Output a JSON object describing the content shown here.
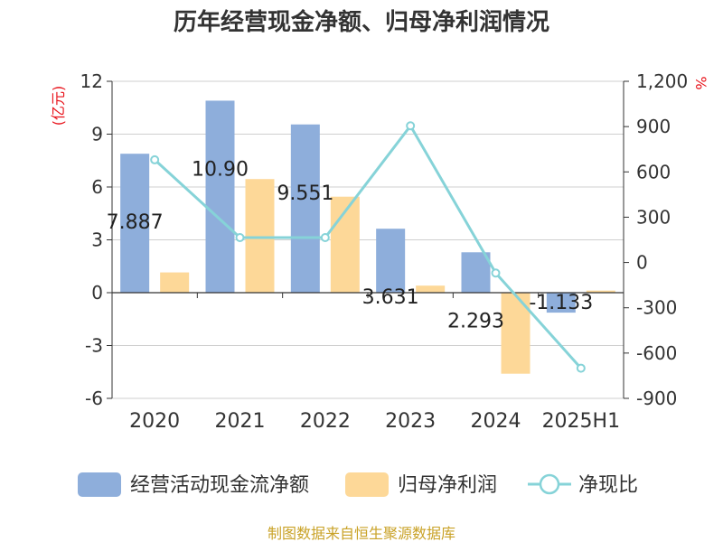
{
  "chart_data": {
    "type": "bar",
    "title": "历年经营现金净额、归母净利润情况",
    "categories": [
      "2020",
      "2021",
      "2022",
      "2023",
      "2024",
      "2025H1"
    ],
    "series": [
      {
        "name": "经营活动现金流净额",
        "type": "bar",
        "axis": "left",
        "color": "#8eaedb",
        "values": [
          7.887,
          10.9,
          9.551,
          3.631,
          2.293,
          -1.133
        ]
      },
      {
        "name": "归母净利润",
        "type": "bar",
        "axis": "left",
        "color": "#fdd898",
        "values": [
          1.15,
          6.45,
          5.45,
          0.4,
          -4.6,
          0.12
        ]
      },
      {
        "name": "净现比",
        "type": "line",
        "axis": "right",
        "color": "#86d3d8",
        "values": [
          680,
          165,
          165,
          905,
          -70,
          -700
        ]
      }
    ],
    "data_labels": [
      "7.887",
      "10.90",
      "9.551",
      "3.631",
      "2.293",
      "-1.133"
    ],
    "left_axis": {
      "unit": "(亿元)",
      "ylim": [
        -6,
        12
      ],
      "ticks": [
        "12",
        "9",
        "6",
        "3",
        "0",
        "-3",
        "-6"
      ]
    },
    "right_axis": {
      "unit": "%",
      "ylim": [
        -900,
        1200
      ],
      "ticks": [
        "1,200",
        "900",
        "600",
        "300",
        "0",
        "-300",
        "-600",
        "-900"
      ]
    },
    "grid": true,
    "legend_position": "bottom"
  },
  "source": "制图数据来自恒生聚源数据库"
}
